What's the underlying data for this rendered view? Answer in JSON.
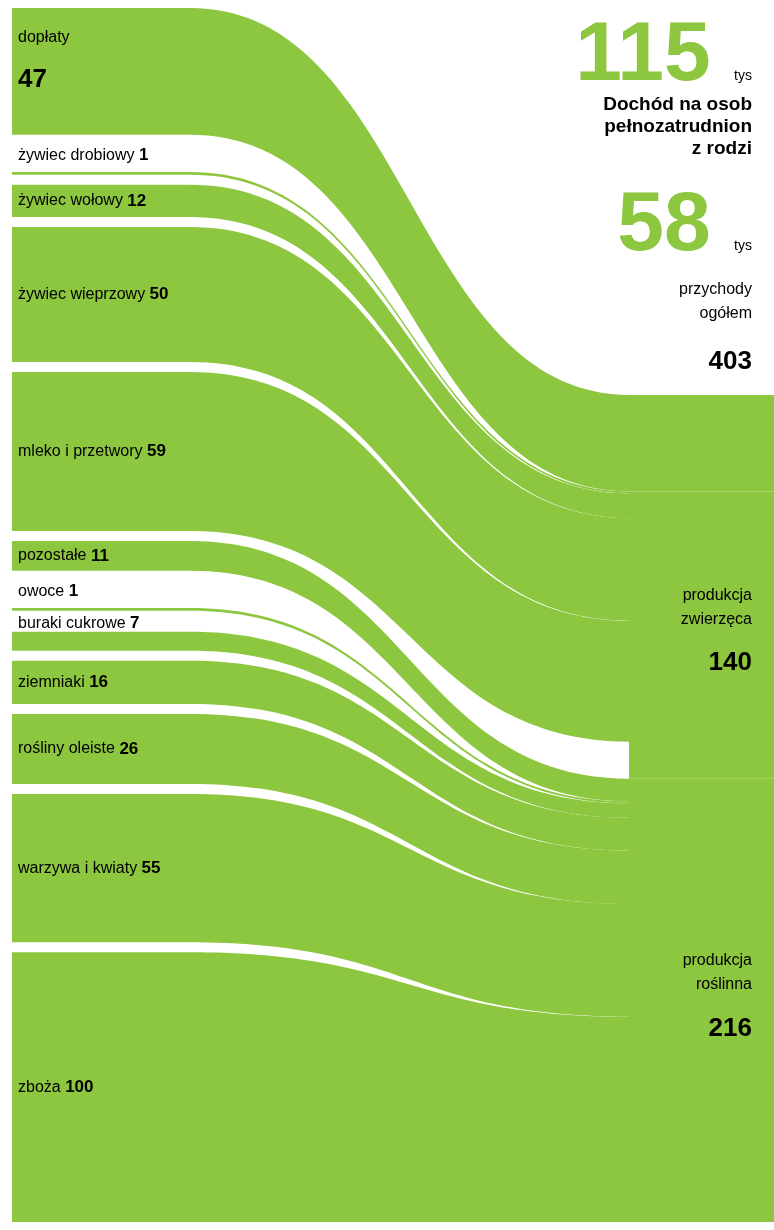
{
  "chart_data": {
    "type": "other",
    "title": "Dochód na osob\npełnozatrudnion\nz rodzi",
    "categories": [
      "dopłaty",
      "żywiec drobiowy",
      "żywiec wołowy",
      "żywiec wieprzowy",
      "mleko i przetwory",
      "pozostałe",
      "owoce",
      "buraki cukrowe",
      "ziemniaki",
      "rośliny oleiste",
      "warzywa i kwiaty",
      "zboża"
    ],
    "series": [
      {
        "color": "#8dc63f",
        "values": [
          47,
          null,
          null,
          null,
          null,
          null,
          null,
          null,
          null,
          null,
          null,
          null
        ]
      },
      {
        "color": "#8dc63f",
        "values": [
          null,
          1,
          12,
          50,
          59,
          null,
          null,
          null,
          null,
          null,
          null,
          null
        ]
      },
      {
        "color": "#8dc63f",
        "values": [
          null,
          null,
          null,
          null,
          null,
          11,
          1,
          7,
          16,
          26,
          55,
          100
        ]
      }
    ],
    "totals": [
      null,
      "140",
      "216"
    ],
    "data_labels": true,
    "annotations": [
      "115 tys",
      "58 tys",
      "przychody ogółem",
      "403",
      "produkcja zwierzęca",
      "produkcja roślinna"
    ]
  }
}
